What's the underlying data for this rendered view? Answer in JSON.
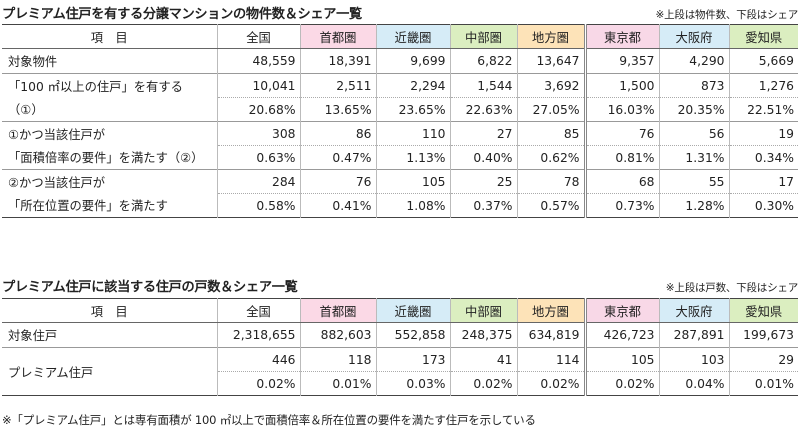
{
  "table1": {
    "title": "プレミアム住戸を有する分譲マンションの物件数＆シェア一覧",
    "note": "※上段は物件数、下段はシェア",
    "header_label": "項　目",
    "columns": [
      "全国",
      "首都圏",
      "近畿圏",
      "中部圏",
      "地方圏",
      "東京都",
      "大阪府",
      "愛知県"
    ],
    "rows": {
      "target": {
        "label": "対象物件",
        "values": [
          "48,559",
          "18,391",
          "9,699",
          "6,822",
          "13,647",
          "9,357",
          "4,290",
          "5,669"
        ]
      },
      "r100": {
        "label1": "「100 ㎡以上の住戸」を有する",
        "label2": "（①）",
        "values": [
          "10,041",
          "2,511",
          "2,294",
          "1,544",
          "3,692",
          "1,500",
          "873",
          "1,276"
        ],
        "shares": [
          "20.68%",
          "13.65%",
          "23.65%",
          "22.63%",
          "27.05%",
          "16.03%",
          "20.35%",
          "22.51%"
        ]
      },
      "floor": {
        "label1": "①かつ当該住戸が",
        "label2": "「面積倍率の要件」を満たす（②）",
        "values": [
          "308",
          "86",
          "110",
          "27",
          "85",
          "76",
          "56",
          "19"
        ],
        "shares": [
          "0.63%",
          "0.47%",
          "1.13%",
          "0.40%",
          "0.62%",
          "0.81%",
          "1.31%",
          "0.34%"
        ]
      },
      "location": {
        "label1": "②かつ当該住戸が",
        "label2": "「所在位置の要件」を満たす",
        "values": [
          "284",
          "76",
          "105",
          "25",
          "78",
          "68",
          "55",
          "17"
        ],
        "shares": [
          "0.58%",
          "0.41%",
          "1.08%",
          "0.37%",
          "0.57%",
          "0.73%",
          "1.28%",
          "0.30%"
        ]
      }
    }
  },
  "table2": {
    "title": "プレミアム住戸に該当する住戸の戸数＆シェア一覧",
    "note": "※上段は戸数、下段はシェア",
    "header_label": "項　目",
    "columns": [
      "全国",
      "首都圏",
      "近畿圏",
      "中部圏",
      "地方圏",
      "東京都",
      "大阪府",
      "愛知県"
    ],
    "rows": {
      "target": {
        "label": "対象住戸",
        "values": [
          "2,318,655",
          "882,603",
          "552,858",
          "248,375",
          "634,819",
          "426,723",
          "287,891",
          "199,673"
        ]
      },
      "premium": {
        "label": "プレミアム住戸",
        "values": [
          "446",
          "118",
          "173",
          "41",
          "114",
          "105",
          "103",
          "29"
        ],
        "shares": [
          "0.02%",
          "0.01%",
          "0.03%",
          "0.02%",
          "0.02%",
          "0.02%",
          "0.04%",
          "0.01%"
        ]
      }
    }
  },
  "footnote": "※「プレミアム住戸」とは専有面積が 100 ㎡以上で面積倍率＆所在位置の要件を満たす住戸を示している"
}
